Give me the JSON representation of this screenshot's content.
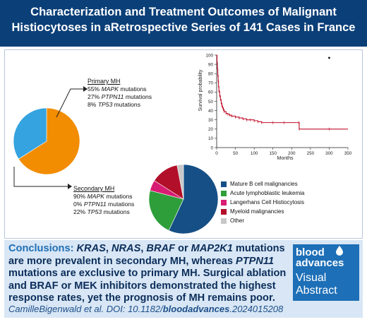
{
  "header": {
    "title_line1": "Characterization and Treatment Outcomes of Malignant",
    "title_line2": "Histiocytoses in aRetrospective Series of 141 Cases in France"
  },
  "primary_mh": {
    "heading": "Primary MH",
    "items": [
      {
        "pct": "55%",
        "gene": "MAPK",
        "suffix": " mutations"
      },
      {
        "pct": "27%",
        "gene": "PTPN11",
        "suffix": " mutations"
      },
      {
        "pct": "8%",
        "gene": "TP53",
        "suffix": " mutations"
      }
    ]
  },
  "secondary_mh": {
    "heading": "Secondary MH",
    "items": [
      {
        "pct": "90%",
        "gene": "MAPK",
        "suffix": " mutations"
      },
      {
        "pct": "0%",
        "gene": "PTPN11",
        "suffix": " mutations"
      },
      {
        "pct": "22%",
        "gene": "TP53",
        "suffix": " mutations"
      }
    ]
  },
  "chart_data": [
    {
      "type": "line",
      "ylabel": "Survival probability",
      "xlabel": "Months",
      "xlim": [
        0,
        350
      ],
      "ylim": [
        0,
        100
      ],
      "xticks": [
        0,
        50,
        100,
        150,
        200,
        250,
        300,
        350
      ],
      "yticks": [
        0,
        10,
        20,
        30,
        40,
        50,
        60,
        70,
        80,
        90,
        100
      ],
      "series": [
        {
          "color": "#c0102a",
          "x": [
            0,
            1,
            2,
            3,
            4,
            5,
            6,
            8,
            10,
            12,
            14,
            16,
            18,
            20,
            25,
            30,
            35,
            40,
            50,
            60,
            70,
            80,
            90,
            100,
            110,
            120,
            150,
            180,
            219,
            220,
            300,
            350
          ],
          "y": [
            100,
            92,
            85,
            78,
            72,
            66,
            61,
            56,
            52,
            48,
            45,
            43,
            41,
            39,
            37,
            36,
            35,
            34,
            33,
            32,
            31,
            30,
            30,
            29,
            28,
            27,
            27,
            27,
            27,
            20,
            20,
            20
          ]
        }
      ],
      "marker": {
        "x": 300,
        "y": 97
      }
    },
    {
      "type": "pie",
      "title": "Primary MH",
      "values": [
        66,
        34
      ],
      "colors": [
        "#f28c00",
        "#35a3df"
      ]
    },
    {
      "type": "pie",
      "title": "Secondary MH",
      "categories": [
        "Mature B cell malignancies",
        "Acute lymphoblastic leukemia",
        "Langerhans Cell Histiocytosis",
        "Myeloid malignancies",
        "Other"
      ],
      "values": [
        57,
        22,
        5,
        13,
        3
      ],
      "colors": [
        "#154f86",
        "#2e9e3a",
        "#d81b73",
        "#b20f2a",
        "#c8c8c8"
      ]
    }
  ],
  "conclusion": {
    "lead": "Conclusions: ",
    "s1": "KRAS",
    "s2": ", ",
    "s3": "NRAS",
    "s4": ", ",
    "s5": "BRAF",
    "s6": " or ",
    "s7": "MAP2K1",
    "s8": " mutations are more prevalent in secondary MH, whereas ",
    "s9": "PTPN11",
    "s10": " mutations are exclusive to primary MH. Surgical ablation and BRAF or MEK inhibitors demonstrated the highest response rates, yet the prognosis of MH remains poor."
  },
  "citation": {
    "prefix": "CamilleBigenwald et al. DOI: 10.1182/",
    "journal": "bloodadvances",
    "suffix": ".2024015208"
  },
  "logo": {
    "line1": "blood",
    "line2": "advances",
    "line3": "Visual",
    "line4": "Abstract"
  }
}
